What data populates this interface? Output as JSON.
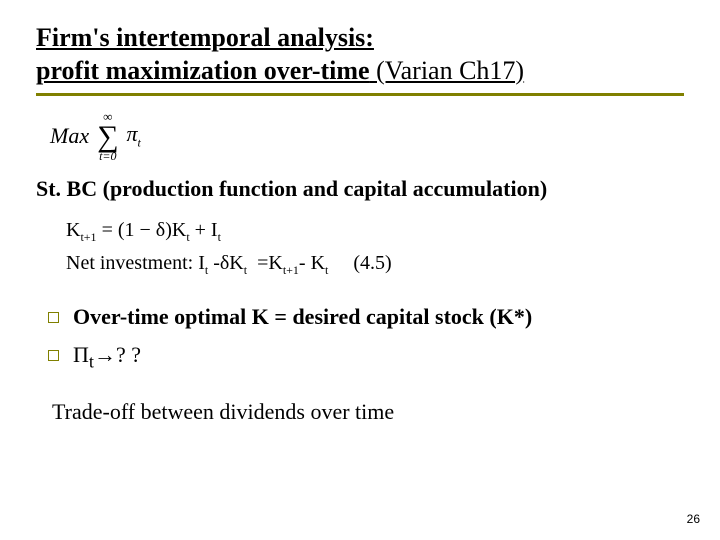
{
  "title": {
    "line1": "Firm's intertemporal analysis:",
    "line2_bold": "profit maximization over-time",
    "line2_plain": " (Varian Ch17)"
  },
  "rule_color": "#808000",
  "equation_max": {
    "label": "Max",
    "sum_top": "∞",
    "sum_bottom": "t=0",
    "term": "π",
    "term_sub": "t"
  },
  "subhead": "St. BC (production function and capital accumulation)",
  "eq_capital": "K_{t+1} = (1 − δ)K_t + I_t",
  "eq_netinv": "Net investment: I_t - δK_t  = K_{t+1} - K_t      (4.5)",
  "bullet1": "Over-time optimal K = desired capital stock (K*)",
  "bullet2_pi": "Π",
  "bullet2_sub": "t",
  "bullet2_rest": "→? ?",
  "tradeoff": "Trade-off between  dividends over time",
  "page_number": "26",
  "fonts": {
    "body_family": "Times New Roman",
    "title_size_pt": 26,
    "body_size_pt": 22,
    "eq_size_pt": 20,
    "pagenum_size_pt": 12
  },
  "colors": {
    "text": "#000000",
    "background": "#ffffff",
    "accent": "#808000"
  }
}
